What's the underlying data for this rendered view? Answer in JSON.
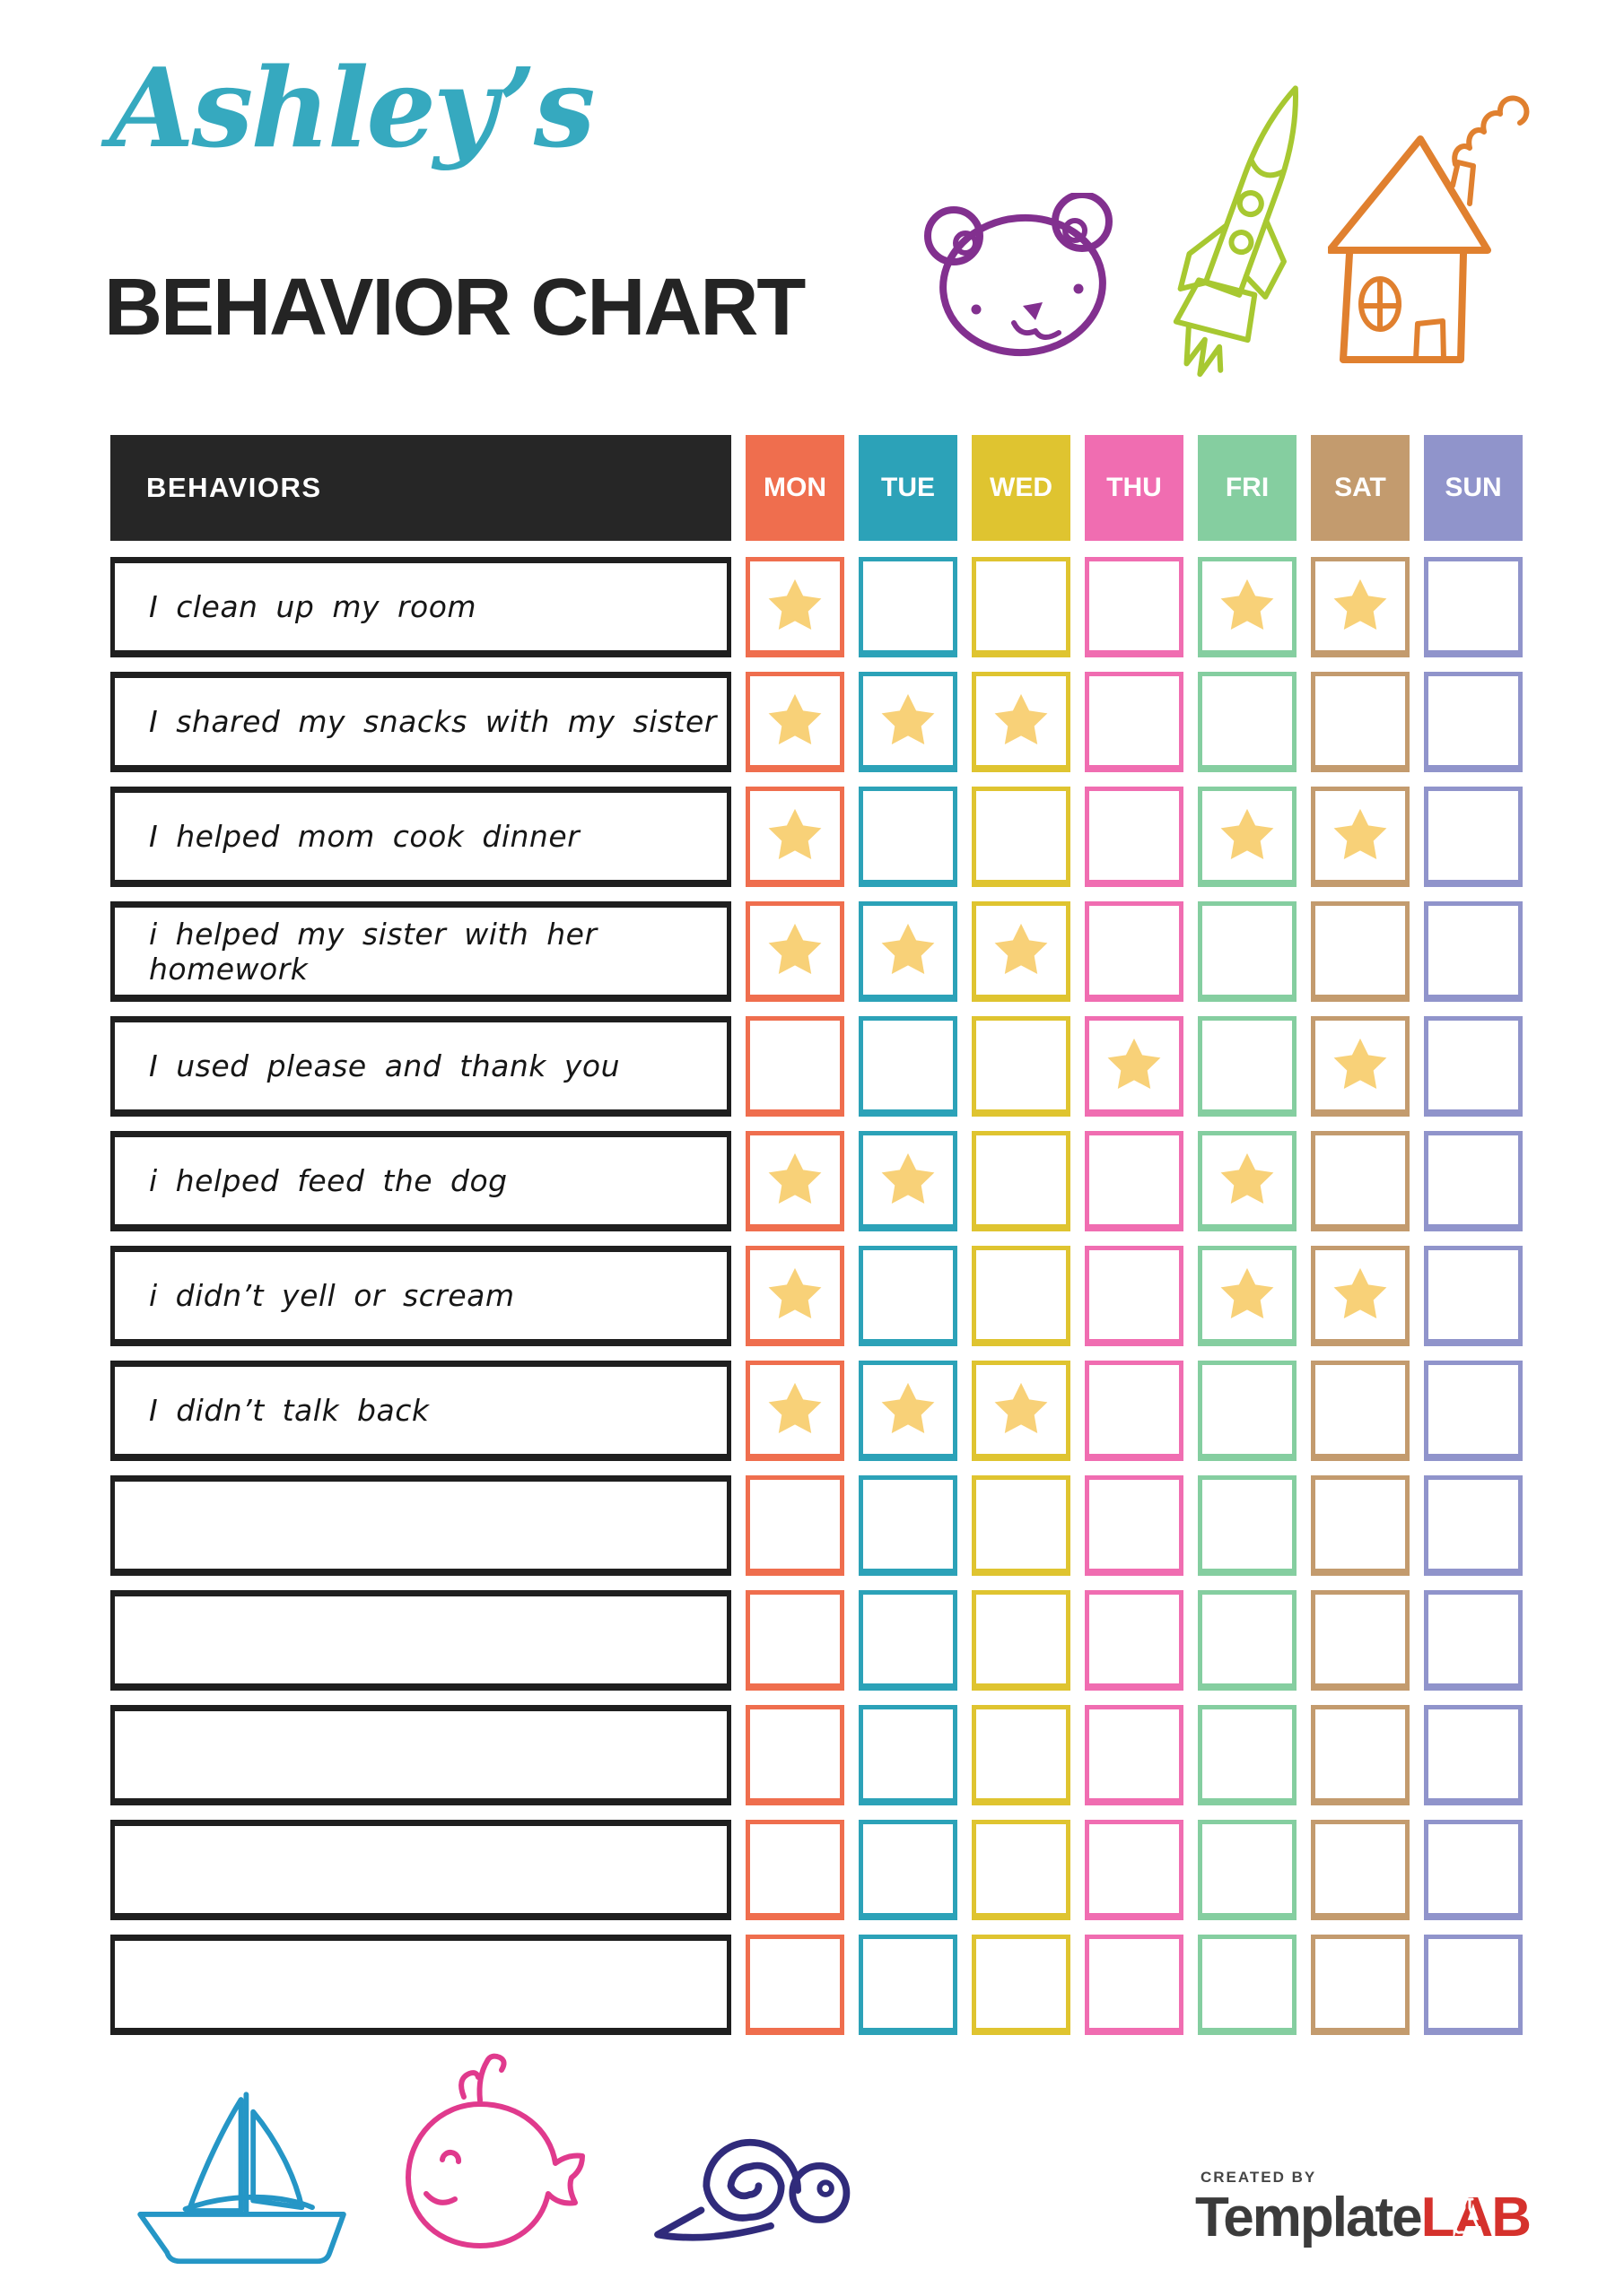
{
  "header": {
    "script_title": "Ashley’s",
    "main_title": "BEHAVIOR CHART"
  },
  "table": {
    "behaviors_header": "BEHAVIORS",
    "days": [
      {
        "label": "MON",
        "color": "#EF6E4E"
      },
      {
        "label": "TUE",
        "color": "#2CA2B8"
      },
      {
        "label": "WED",
        "color": "#DFC430"
      },
      {
        "label": "THU",
        "color": "#F06DB1"
      },
      {
        "label": "FRI",
        "color": "#85CEA0"
      },
      {
        "label": "SAT",
        "color": "#C39B6E"
      },
      {
        "label": "SUN",
        "color": "#9094CB"
      }
    ],
    "rows": [
      {
        "label": "I clean up my room",
        "stars": [
          1,
          0,
          0,
          0,
          1,
          1,
          0
        ]
      },
      {
        "label": "I shared my snacks with my sister",
        "stars": [
          1,
          1,
          1,
          0,
          0,
          0,
          0
        ]
      },
      {
        "label": "I helped mom cook dinner",
        "stars": [
          1,
          0,
          0,
          0,
          1,
          1,
          0
        ]
      },
      {
        "label": "i helped my sister with her homework",
        "stars": [
          1,
          1,
          1,
          0,
          0,
          0,
          0
        ]
      },
      {
        "label": "I used please and thank you",
        "stars": [
          0,
          0,
          0,
          1,
          0,
          1,
          0
        ]
      },
      {
        "label": "i helped feed the dog",
        "stars": [
          1,
          1,
          0,
          0,
          1,
          0,
          0
        ]
      },
      {
        "label": "i didn’t yell or scream",
        "stars": [
          1,
          0,
          0,
          0,
          1,
          1,
          0
        ]
      },
      {
        "label": "I didn’t talk back",
        "stars": [
          1,
          1,
          1,
          0,
          0,
          0,
          0
        ]
      },
      {
        "label": "",
        "stars": [
          0,
          0,
          0,
          0,
          0,
          0,
          0
        ]
      },
      {
        "label": "",
        "stars": [
          0,
          0,
          0,
          0,
          0,
          0,
          0
        ]
      },
      {
        "label": "",
        "stars": [
          0,
          0,
          0,
          0,
          0,
          0,
          0
        ]
      },
      {
        "label": "",
        "stars": [
          0,
          0,
          0,
          0,
          0,
          0,
          0
        ]
      },
      {
        "label": "",
        "stars": [
          0,
          0,
          0,
          0,
          0,
          0,
          0
        ]
      }
    ]
  },
  "footer": {
    "created_by": "CREATED BY",
    "brand_name_1": "Template",
    "brand_name_2": "LAB"
  },
  "icons": {
    "header": [
      "teddy-bear-icon",
      "rocket-icon",
      "house-icon"
    ],
    "footer": [
      "sailboat-icon",
      "whale-icon",
      "snail-icon"
    ],
    "cell_marker": "star-icon",
    "brand_marker": "flask-icon"
  },
  "colors": {
    "accent_title": "#36A9BF",
    "header_bg": "#262626",
    "star": "#F8D178",
    "bear": "#82308F",
    "rocket": "#A7C831",
    "house": "#E0802F",
    "sailboat": "#2596C6",
    "whale": "#E03A8D",
    "snail": "#302B7B",
    "brand_gray": "#3B3B3B",
    "brand_red": "#D5312C"
  }
}
